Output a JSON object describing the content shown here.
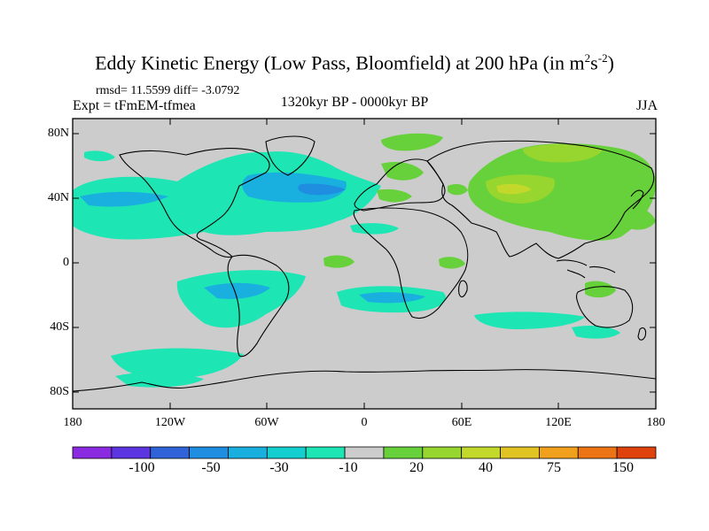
{
  "title": {
    "main": "Eddy Kinetic Energy (Low Pass, Bloomfield) at 200 hPa (in m",
    "sup1": "2",
    "mid": "s",
    "sup2": "-2",
    "end": ")"
  },
  "stats": "rmsd= 11.5599 diff= -3.0792",
  "experiment": "Expt = tFmEM-tfmea",
  "period": "1320kyr BP - 0000kyr BP",
  "season": "JJA",
  "lat_labels": [
    "80N",
    "40N",
    "0",
    "40S",
    "80S"
  ],
  "lon_labels": [
    "180",
    "120W",
    "60W",
    "0",
    "60E",
    "120E",
    "180"
  ],
  "colorbar": {
    "colors": [
      "#8a2be2",
      "#5a35e0",
      "#3163d8",
      "#1f8ee0",
      "#19b0e0",
      "#14cfcf",
      "#1de6b4",
      "#cccccc",
      "#66d13a",
      "#96d62f",
      "#c2d82a",
      "#e1c324",
      "#f0a01c",
      "#ec7414",
      "#e0420e"
    ],
    "labels": [
      "-100",
      "-50",
      "-30",
      "-10",
      "20",
      "40",
      "75",
      "150"
    ]
  },
  "map_colors": {
    "ocean_background": "#cccccc",
    "negative_light": "#1de6b4",
    "negative_medium": "#19b0e0",
    "negative_strong": "#1f8ee0",
    "positive_light": "#66d13a",
    "positive_medium": "#96d62f",
    "positive_strong": "#c2d82a"
  }
}
